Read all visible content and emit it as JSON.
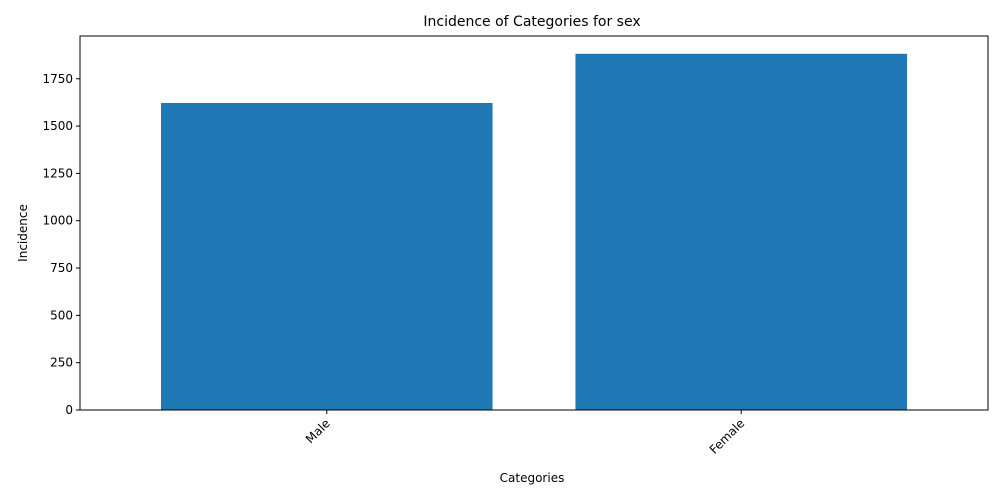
{
  "chart_data": {
    "type": "bar",
    "title": "Incidence of Categories for sex",
    "xlabel": "Categories",
    "ylabel": "Incidence",
    "categories": [
      "Male",
      "Female"
    ],
    "values": [
      1622,
      1882
    ],
    "ylim": [
      0,
      1976
    ],
    "yticks": [
      0,
      250,
      500,
      750,
      1000,
      1250,
      1500,
      1750
    ],
    "grid": false,
    "legend": "none",
    "bar_color": "#1f77b4"
  }
}
